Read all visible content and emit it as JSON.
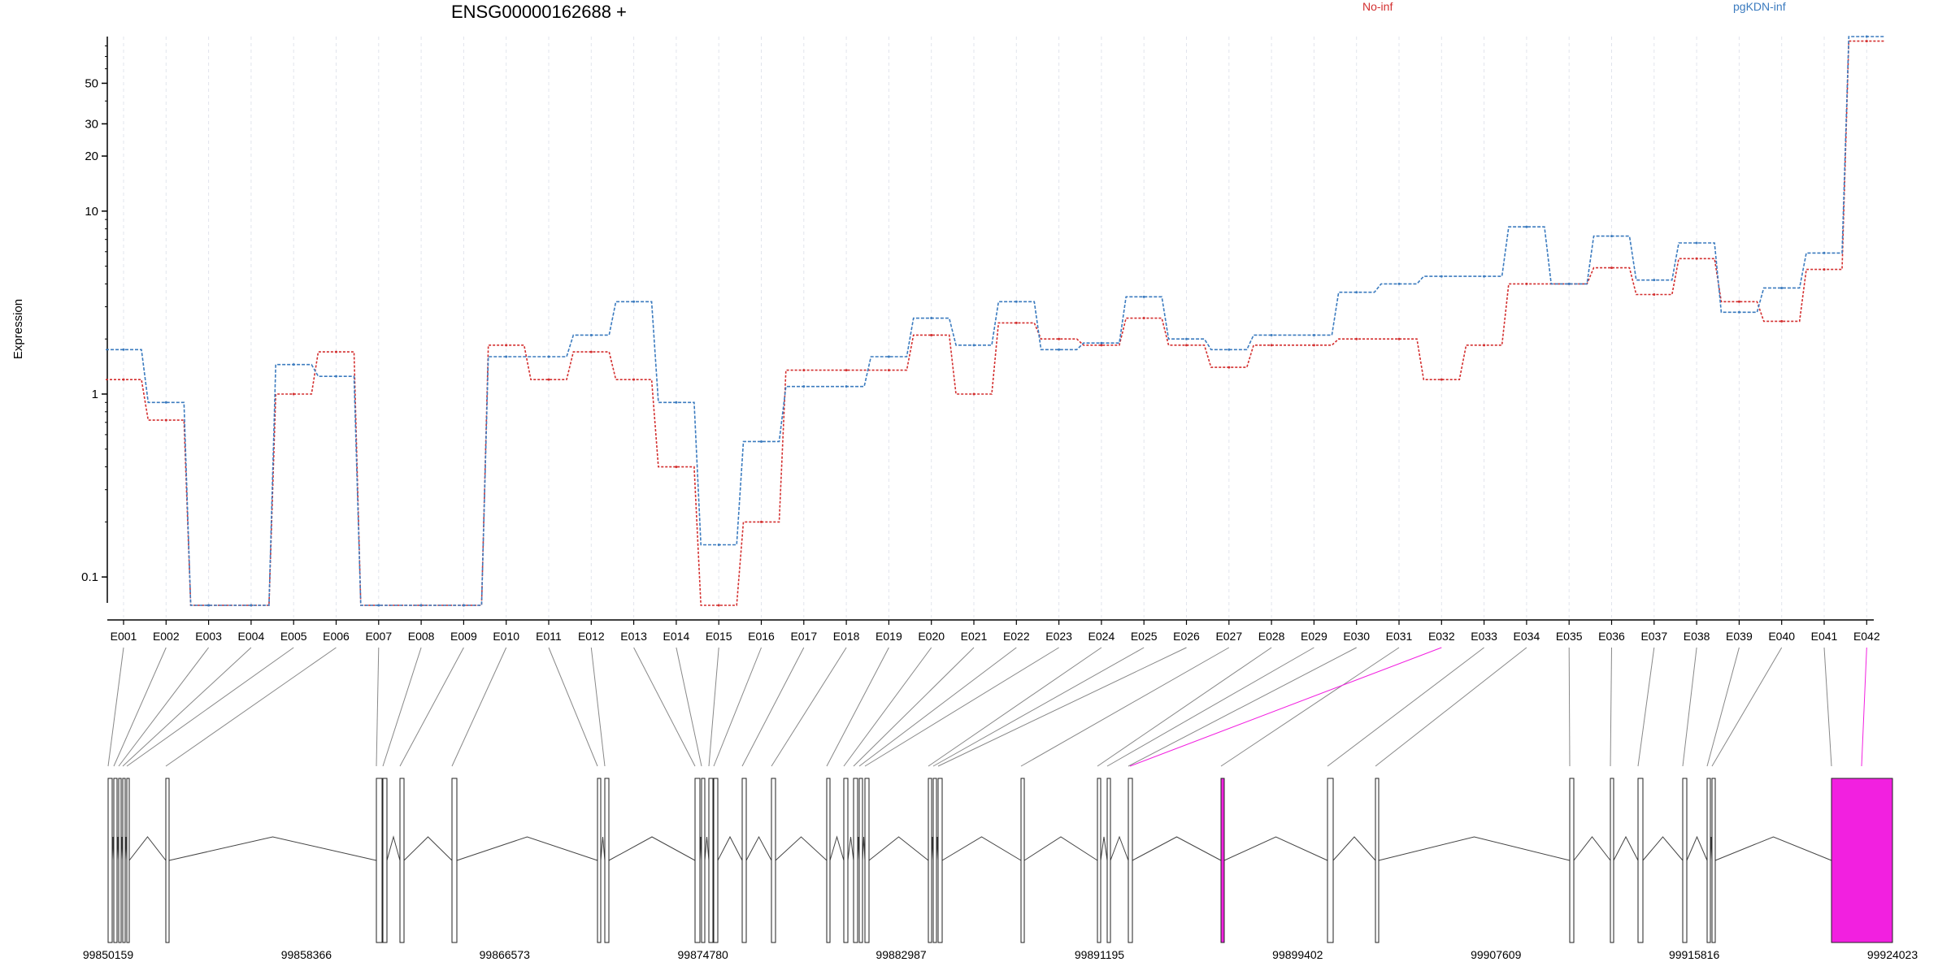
{
  "chart_data": {
    "type": "line",
    "title": "ENSG00000162688 +",
    "ylabel": "Expression",
    "yscale": "log",
    "ylim": [
      0.07,
      90
    ],
    "yticks": [
      {
        "value": 0.1,
        "label": "0.1"
      },
      {
        "value": 1,
        "label": "1"
      },
      {
        "value": 10,
        "label": "10"
      },
      {
        "value": 20,
        "label": "20"
      },
      {
        "value": 30,
        "label": "30"
      },
      {
        "value": 50,
        "label": "50"
      }
    ],
    "categories": [
      "E001",
      "E002",
      "E003",
      "E004",
      "E005",
      "E006",
      "E007",
      "E008",
      "E009",
      "E010",
      "E011",
      "E012",
      "E013",
      "E014",
      "E015",
      "E016",
      "E017",
      "E018",
      "E019",
      "E020",
      "E021",
      "E022",
      "E023",
      "E024",
      "E025",
      "E026",
      "E027",
      "E028",
      "E029",
      "E030",
      "E031",
      "E032",
      "E033",
      "E034",
      "E035",
      "E036",
      "E037",
      "E038",
      "E039",
      "E040",
      "E041",
      "E042"
    ],
    "series": [
      {
        "name": "No-inf",
        "color": "#d32f2f",
        "values": [
          1.2,
          0.72,
          0.07,
          0.07,
          1.0,
          1.7,
          0.07,
          0.07,
          0.07,
          1.85,
          1.2,
          1.7,
          1.2,
          0.4,
          0.07,
          0.2,
          1.35,
          1.35,
          1.35,
          2.1,
          1.0,
          2.45,
          2.0,
          1.85,
          2.6,
          1.85,
          1.4,
          1.85,
          1.85,
          2.0,
          2.0,
          1.2,
          1.85,
          4.0,
          4.0,
          4.9,
          3.5,
          5.5,
          3.2,
          2.5,
          4.8,
          85
        ]
      },
      {
        "name": "pgKDN-inf",
        "color": "#3b7bbf",
        "values": [
          1.75,
          0.9,
          0.07,
          0.07,
          1.45,
          1.25,
          0.07,
          0.07,
          0.07,
          1.6,
          1.6,
          2.1,
          3.2,
          0.9,
          0.15,
          0.55,
          1.1,
          1.1,
          1.6,
          2.6,
          1.85,
          3.2,
          1.75,
          1.9,
          3.4,
          2.0,
          1.75,
          2.1,
          2.1,
          3.6,
          4.0,
          4.4,
          4.4,
          8.2,
          4.0,
          7.3,
          4.2,
          6.7,
          2.8,
          3.8,
          5.9,
          90
        ]
      }
    ],
    "grid": "vertical-dashed",
    "legend": "top",
    "gene_model": {
      "coord_ticks": [
        "99850159",
        "99858366",
        "99866573",
        "99874780",
        "99882987",
        "99891195",
        "99899402",
        "99907609",
        "99915816",
        "99924023"
      ],
      "highlight_color": "#f220e0",
      "highlighted_exons": [
        "E032",
        "E042"
      ]
    }
  }
}
